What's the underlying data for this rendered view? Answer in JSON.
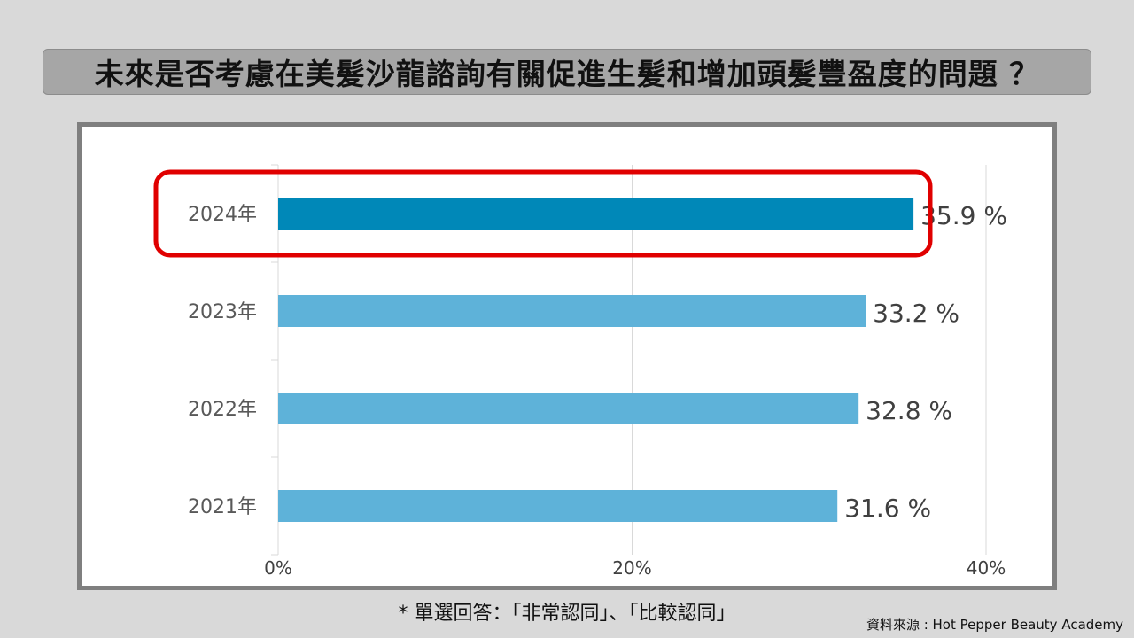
{
  "title": "未來是否考慮在美髮沙龍諮詢有關促進生髮和增加頭髮豐盈度的問題 ？",
  "footnote": "* 單選回答：「非常認同」、「比較認同」",
  "source": "資料來源 : Hot Pepper Beauty Academy",
  "chart_data": {
    "type": "bar",
    "orientation": "horizontal",
    "categories": [
      "2024年",
      "2023年",
      "2022年",
      "2021年"
    ],
    "values": [
      35.9,
      33.2,
      32.8,
      31.6
    ],
    "value_labels": [
      "35.9 %",
      "33.2 %",
      "32.8 %",
      "31.6 %"
    ],
    "xlim": [
      0,
      40
    ],
    "x_ticks": [
      "0%",
      "20%",
      "40%"
    ],
    "x_tick_values": [
      0,
      20,
      40
    ],
    "grid": true,
    "highlight_category": "2024年",
    "colors": {
      "highlight": "#0088b8",
      "bar": "#5eb2d9",
      "highlight_box": "#e00000",
      "grid": "#d9d9d9"
    }
  }
}
